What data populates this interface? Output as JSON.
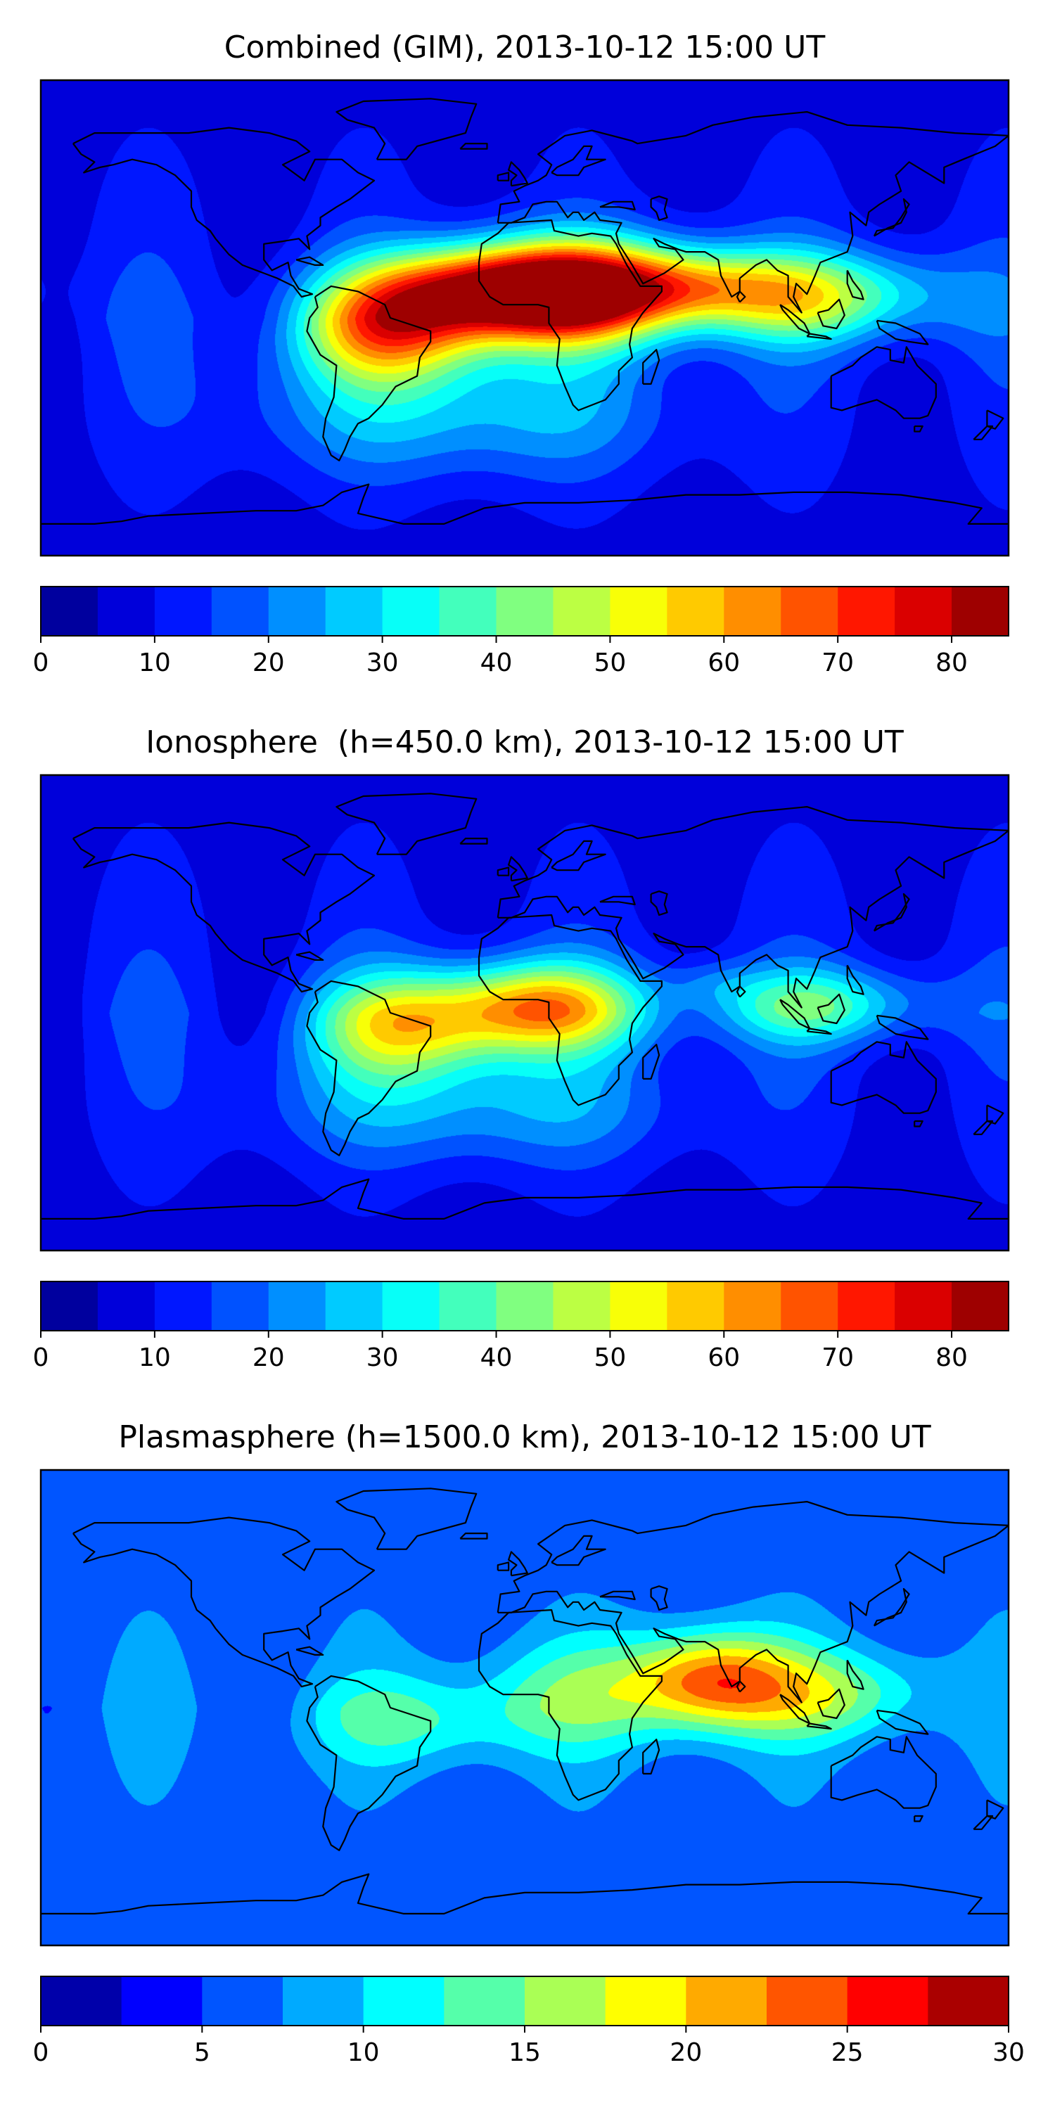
{
  "chart_data": [
    {
      "type": "heatmap",
      "title": "Combined (GIM), 2013-10-12 15:00 UT",
      "colorbar": {
        "min": 0,
        "max": 85,
        "step": 5,
        "ticks": [
          0,
          10,
          20,
          30,
          40,
          50,
          60,
          70,
          80
        ]
      },
      "features": [
        {
          "lon": -15,
          "lat": 10,
          "value": 70,
          "spread_lon": 32,
          "spread_lat": 12
        },
        {
          "lon": 20,
          "lat": 10,
          "value": 65,
          "spread_lon": 30,
          "spread_lat": 14
        },
        {
          "lon": -50,
          "lat": -5,
          "value": 55,
          "spread_lon": 25,
          "spread_lat": 14
        },
        {
          "lon": 110,
          "lat": 8,
          "value": 45,
          "spread_lon": 35,
          "spread_lat": 12
        },
        {
          "lon": 60,
          "lat": 12,
          "value": 40,
          "spread_lon": 30,
          "spread_lat": 10
        },
        {
          "lon": -25,
          "lat": -35,
          "value": 30,
          "spread_lon": 55,
          "spread_lat": 18
        }
      ],
      "background_value": 12
    },
    {
      "type": "heatmap",
      "title": "Ionosphere  (h=450.0 km), 2013-10-12 15:00 UT",
      "colorbar": {
        "min": 0,
        "max": 85,
        "step": 5,
        "ticks": [
          0,
          10,
          20,
          30,
          40,
          50,
          60,
          70,
          80
        ]
      },
      "features": [
        {
          "lon": 5,
          "lat": 2,
          "value": 60,
          "spread_lon": 28,
          "spread_lat": 12
        },
        {
          "lon": -45,
          "lat": -5,
          "value": 48,
          "spread_lon": 25,
          "spread_lat": 14
        },
        {
          "lon": 110,
          "lat": 3,
          "value": 38,
          "spread_lon": 30,
          "spread_lat": 10
        },
        {
          "lon": 70,
          "lat": 12,
          "value": 18,
          "spread_lon": 12,
          "spread_lat": 6
        },
        {
          "lon": -20,
          "lat": -35,
          "value": 28,
          "spread_lon": 55,
          "spread_lat": 16
        }
      ],
      "background_value": 12
    },
    {
      "type": "heatmap",
      "title": "Plasmasphere (h=1500.0 km), 2013-10-12 15:00 UT",
      "colorbar": {
        "min": 0,
        "max": 30,
        "step": 2.5,
        "ticks": [
          0,
          5,
          10,
          15,
          20,
          25,
          30
        ]
      },
      "features": [
        {
          "lon": 70,
          "lat": 10,
          "value": 24,
          "spread_lon": 22,
          "spread_lat": 13
        },
        {
          "lon": 120,
          "lat": 5,
          "value": 15,
          "spread_lon": 25,
          "spread_lat": 12
        },
        {
          "lon": -40,
          "lat": -5,
          "value": 13,
          "spread_lon": 30,
          "spread_lat": 12
        },
        {
          "lon": 20,
          "lat": 5,
          "value": 13,
          "spread_lon": 30,
          "spread_lat": 15
        }
      ],
      "background_value": 7
    }
  ]
}
